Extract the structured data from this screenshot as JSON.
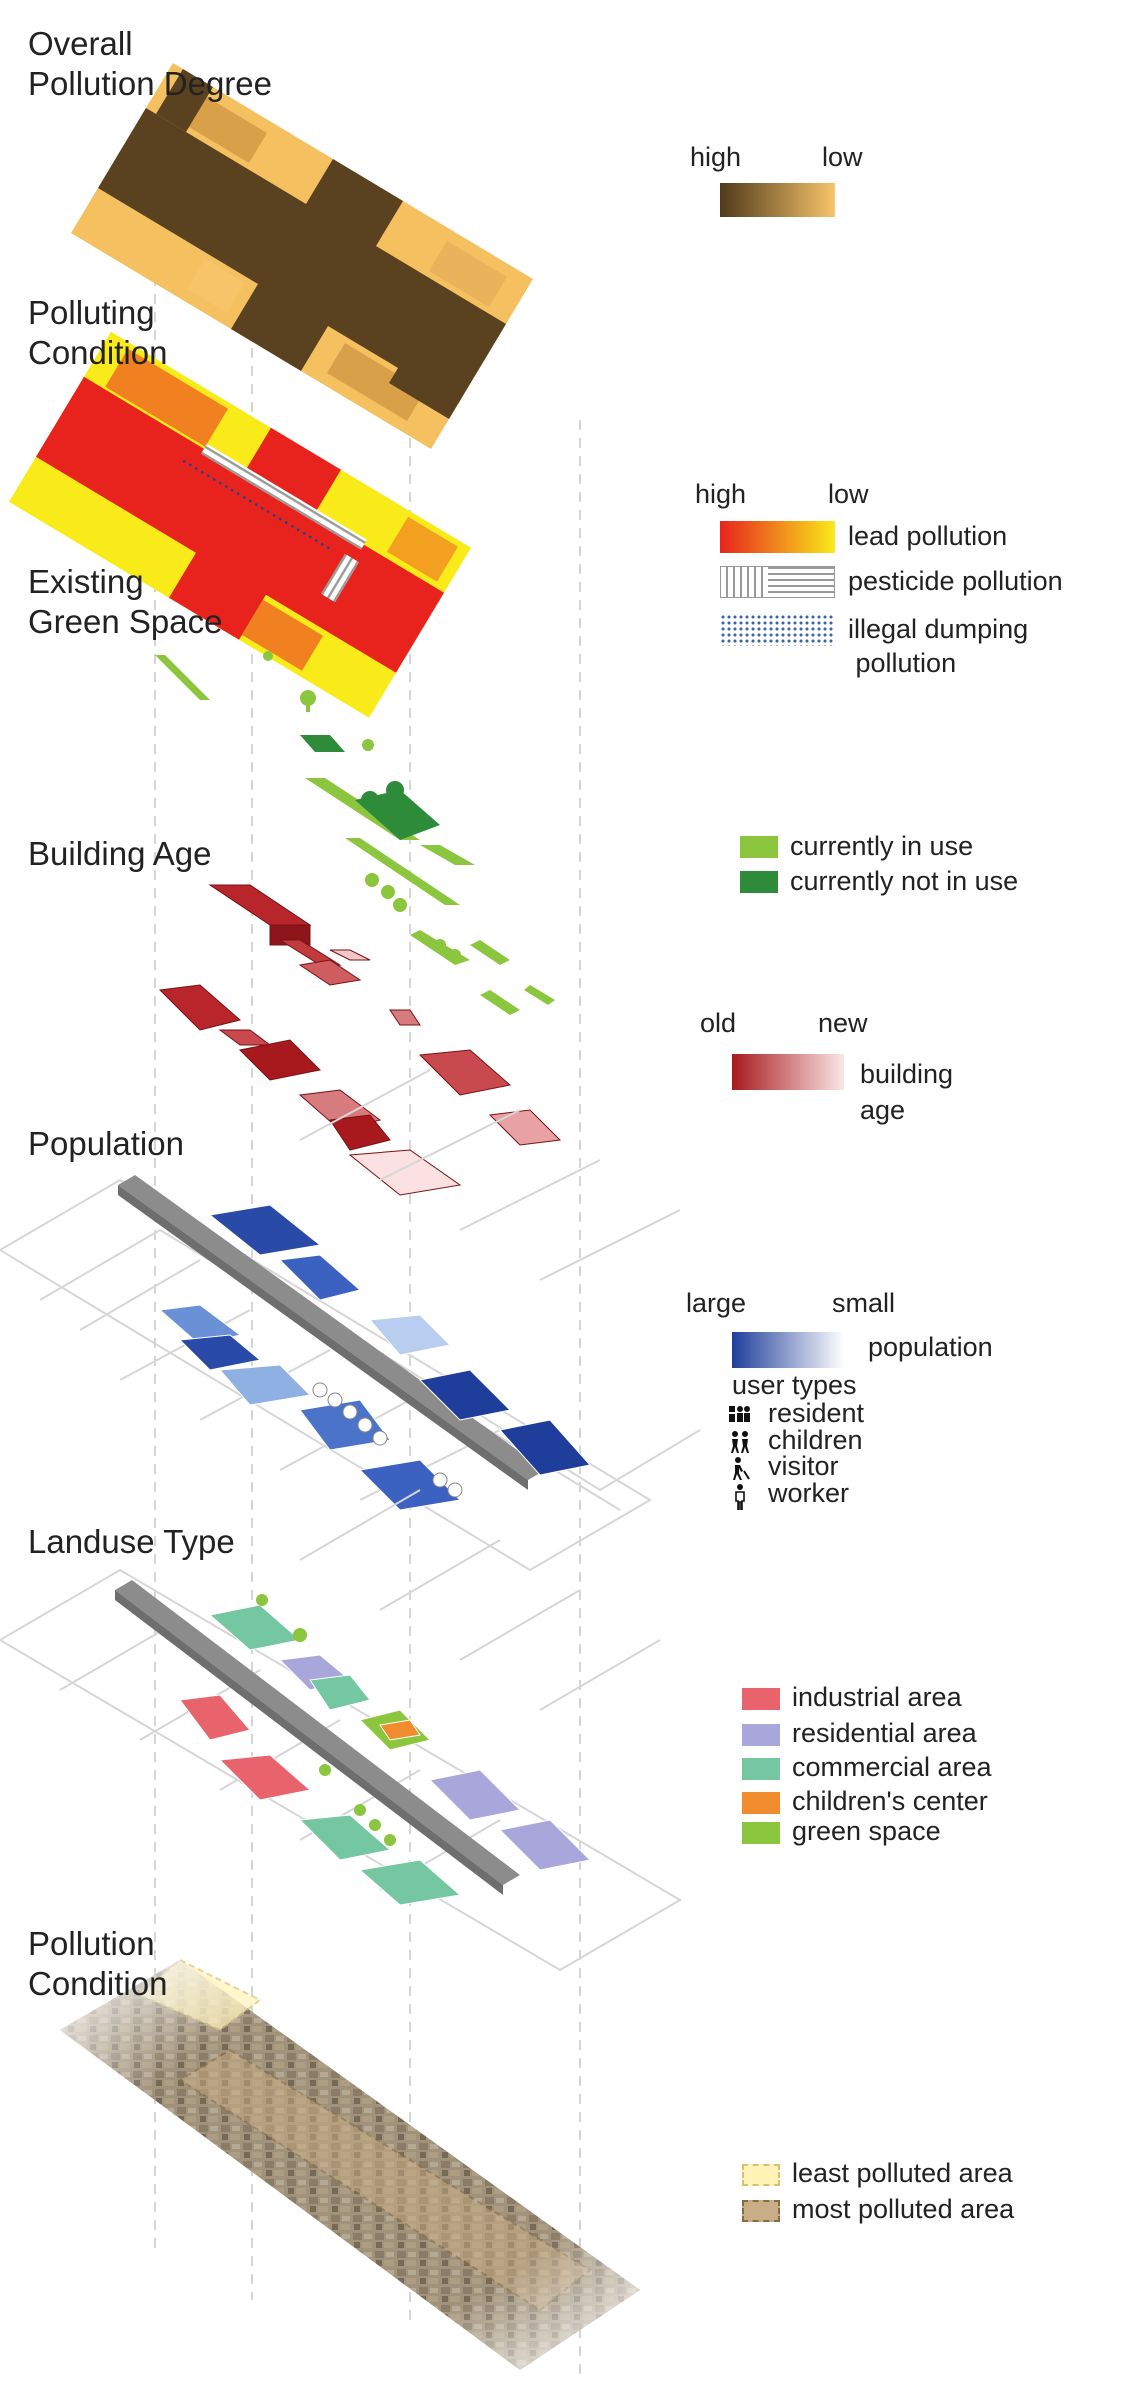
{
  "layers": [
    {
      "title": "Overall\nPollution Degree"
    },
    {
      "title": "Polluting\nCondition"
    },
    {
      "title": "Existing\nGreen Space"
    },
    {
      "title": "Building Age"
    },
    {
      "title": "Population"
    },
    {
      "title": "Landuse Type"
    },
    {
      "title": "Pollution\nCondition"
    }
  ],
  "legends": {
    "pollution_degree": {
      "high": "high",
      "low": "low",
      "colors": [
        "#4f3a1a",
        "#f8c46a"
      ]
    },
    "polluting_condition": {
      "high": "high",
      "low": "low",
      "items": [
        {
          "label": "lead pollution",
          "colors": [
            "#e8231e",
            "#f9ea1a"
          ]
        },
        {
          "label": "pesticide pollution"
        },
        {
          "label": "illegal dumping\n pollution"
        }
      ]
    },
    "green_space": {
      "items": [
        {
          "label": "currently in use",
          "color": "#8cc63f"
        },
        {
          "label": "currently not in use",
          "color": "#2e8b3a"
        }
      ]
    },
    "building_age": {
      "old": "old",
      "new": "new",
      "label": "building\nage",
      "colors": [
        "#a8191e",
        "#fbe6e6"
      ]
    },
    "population": {
      "large": "large",
      "small": "small",
      "label": "population",
      "colors": [
        "#1f3e9b",
        "#ffffff"
      ],
      "user_types_title": "user types",
      "user_types": [
        {
          "label": "resident",
          "icon": "resident-icon"
        },
        {
          "label": "children",
          "icon": "children-icon"
        },
        {
          "label": "visitor",
          "icon": "visitor-icon"
        },
        {
          "label": "worker",
          "icon": "worker-icon"
        }
      ]
    },
    "landuse": {
      "items": [
        {
          "label": "industrial area",
          "color": "#e8636c"
        },
        {
          "label": "residential area",
          "color": "#a9a6dc"
        },
        {
          "label": "commercial area",
          "color": "#74c7a0"
        },
        {
          "label": "children's center",
          "color": "#f08c2e"
        },
        {
          "label": "green space",
          "color": "#8cc63f"
        }
      ]
    },
    "pollution_condition": {
      "items": [
        {
          "label": "least polluted area",
          "color": "#fff3b8"
        },
        {
          "label": "most polluted area",
          "color": "#c9ad86"
        }
      ]
    }
  }
}
